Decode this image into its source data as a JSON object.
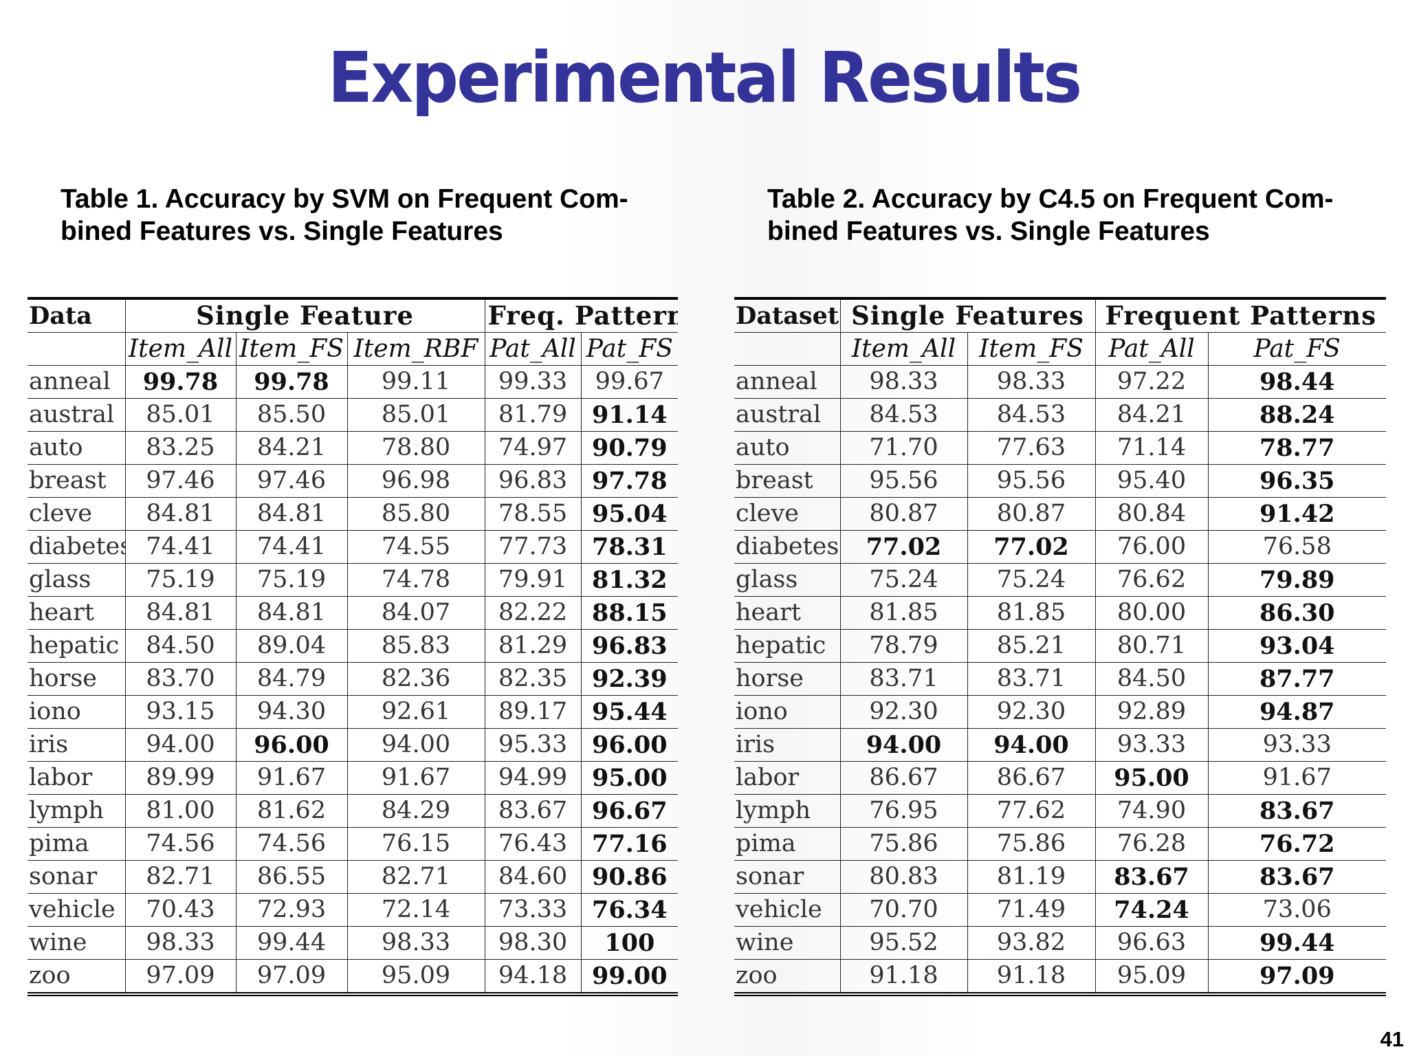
{
  "slide": {
    "title": "Experimental Results",
    "page_number": "41"
  },
  "table1": {
    "caption_line1": "Table 1. Accuracy by SVM on Frequent Com-",
    "caption_line2": "bined Features vs. Single Features",
    "header": {
      "data": "Data",
      "group1": "Single Feature",
      "group2": "Freq. Pattern",
      "sub": [
        "Item_All",
        "Item_FS",
        "Item_RBF",
        "Pat_All",
        "Pat_FS"
      ]
    },
    "rows": [
      {
        "name": "anneal",
        "values": [
          "99.78",
          "99.78",
          "99.11",
          "99.33",
          "99.67"
        ],
        "bold": [
          0,
          1
        ]
      },
      {
        "name": "austral",
        "values": [
          "85.01",
          "85.50",
          "85.01",
          "81.79",
          "91.14"
        ],
        "bold": [
          4
        ]
      },
      {
        "name": "auto",
        "values": [
          "83.25",
          "84.21",
          "78.80",
          "74.97",
          "90.79"
        ],
        "bold": [
          4
        ]
      },
      {
        "name": "breast",
        "values": [
          "97.46",
          "97.46",
          "96.98",
          "96.83",
          "97.78"
        ],
        "bold": [
          4
        ]
      },
      {
        "name": "cleve",
        "values": [
          "84.81",
          "84.81",
          "85.80",
          "78.55",
          "95.04"
        ],
        "bold": [
          4
        ]
      },
      {
        "name": "diabetes",
        "values": [
          "74.41",
          "74.41",
          "74.55",
          "77.73",
          "78.31"
        ],
        "bold": [
          4
        ]
      },
      {
        "name": "glass",
        "values": [
          "75.19",
          "75.19",
          "74.78",
          "79.91",
          "81.32"
        ],
        "bold": [
          4
        ]
      },
      {
        "name": "heart",
        "values": [
          "84.81",
          "84.81",
          "84.07",
          "82.22",
          "88.15"
        ],
        "bold": [
          4
        ]
      },
      {
        "name": "hepatic",
        "values": [
          "84.50",
          "89.04",
          "85.83",
          "81.29",
          "96.83"
        ],
        "bold": [
          4
        ]
      },
      {
        "name": "horse",
        "values": [
          "83.70",
          "84.79",
          "82.36",
          "82.35",
          "92.39"
        ],
        "bold": [
          4
        ]
      },
      {
        "name": "iono",
        "values": [
          "93.15",
          "94.30",
          "92.61",
          "89.17",
          "95.44"
        ],
        "bold": [
          4
        ]
      },
      {
        "name": "iris",
        "values": [
          "94.00",
          "96.00",
          "94.00",
          "95.33",
          "96.00"
        ],
        "bold": [
          1,
          4
        ]
      },
      {
        "name": "labor",
        "values": [
          "89.99",
          "91.67",
          "91.67",
          "94.99",
          "95.00"
        ],
        "bold": [
          4
        ]
      },
      {
        "name": "lymph",
        "values": [
          "81.00",
          "81.62",
          "84.29",
          "83.67",
          "96.67"
        ],
        "bold": [
          4
        ]
      },
      {
        "name": "pima",
        "values": [
          "74.56",
          "74.56",
          "76.15",
          "76.43",
          "77.16"
        ],
        "bold": [
          4
        ]
      },
      {
        "name": "sonar",
        "values": [
          "82.71",
          "86.55",
          "82.71",
          "84.60",
          "90.86"
        ],
        "bold": [
          4
        ]
      },
      {
        "name": "vehicle",
        "values": [
          "70.43",
          "72.93",
          "72.14",
          "73.33",
          "76.34"
        ],
        "bold": [
          4
        ]
      },
      {
        "name": "wine",
        "values": [
          "98.33",
          "99.44",
          "98.33",
          "98.30",
          "100"
        ],
        "bold": [
          4
        ]
      },
      {
        "name": "zoo",
        "values": [
          "97.09",
          "97.09",
          "95.09",
          "94.18",
          "99.00"
        ],
        "bold": [
          4
        ]
      }
    ]
  },
  "table2": {
    "caption_line1": "Table 2. Accuracy by C4.5 on Frequent Com-",
    "caption_line2": "bined Features vs. Single Features",
    "header": {
      "data": "Dataset",
      "group1": "Single Features",
      "group2": "Frequent Patterns",
      "sub": [
        "Item_All",
        "Item_FS",
        "Pat_All",
        "Pat_FS"
      ]
    },
    "rows": [
      {
        "name": "anneal",
        "values": [
          "98.33",
          "98.33",
          "97.22",
          "98.44"
        ],
        "bold": [
          3
        ]
      },
      {
        "name": "austral",
        "values": [
          "84.53",
          "84.53",
          "84.21",
          "88.24"
        ],
        "bold": [
          3
        ]
      },
      {
        "name": "auto",
        "values": [
          "71.70",
          "77.63",
          "71.14",
          "78.77"
        ],
        "bold": [
          3
        ]
      },
      {
        "name": "breast",
        "values": [
          "95.56",
          "95.56",
          "95.40",
          "96.35"
        ],
        "bold": [
          3
        ]
      },
      {
        "name": "cleve",
        "values": [
          "80.87",
          "80.87",
          "80.84",
          "91.42"
        ],
        "bold": [
          3
        ]
      },
      {
        "name": "diabetes",
        "values": [
          "77.02",
          "77.02",
          "76.00",
          "76.58"
        ],
        "bold": [
          0,
          1
        ]
      },
      {
        "name": "glass",
        "values": [
          "75.24",
          "75.24",
          "76.62",
          "79.89"
        ],
        "bold": [
          3
        ]
      },
      {
        "name": "heart",
        "values": [
          "81.85",
          "81.85",
          "80.00",
          "86.30"
        ],
        "bold": [
          3
        ]
      },
      {
        "name": "hepatic",
        "values": [
          "78.79",
          "85.21",
          "80.71",
          "93.04"
        ],
        "bold": [
          3
        ]
      },
      {
        "name": "horse",
        "values": [
          "83.71",
          "83.71",
          "84.50",
          "87.77"
        ],
        "bold": [
          3
        ]
      },
      {
        "name": "iono",
        "values": [
          "92.30",
          "92.30",
          "92.89",
          "94.87"
        ],
        "bold": [
          3
        ]
      },
      {
        "name": "iris",
        "values": [
          "94.00",
          "94.00",
          "93.33",
          "93.33"
        ],
        "bold": [
          0,
          1
        ]
      },
      {
        "name": "labor",
        "values": [
          "86.67",
          "86.67",
          "95.00",
          "91.67"
        ],
        "bold": [
          2
        ]
      },
      {
        "name": "lymph",
        "values": [
          "76.95",
          "77.62",
          "74.90",
          "83.67"
        ],
        "bold": [
          3
        ]
      },
      {
        "name": "pima",
        "values": [
          "75.86",
          "75.86",
          "76.28",
          "76.72"
        ],
        "bold": [
          3
        ]
      },
      {
        "name": "sonar",
        "values": [
          "80.83",
          "81.19",
          "83.67",
          "83.67"
        ],
        "bold": [
          2,
          3
        ]
      },
      {
        "name": "vehicle",
        "values": [
          "70.70",
          "71.49",
          "74.24",
          "73.06"
        ],
        "bold": [
          2
        ]
      },
      {
        "name": "wine",
        "values": [
          "95.52",
          "93.82",
          "96.63",
          "99.44"
        ],
        "bold": [
          3
        ]
      },
      {
        "name": "zoo",
        "values": [
          "91.18",
          "91.18",
          "95.09",
          "97.09"
        ],
        "bold": [
          3
        ]
      }
    ]
  }
}
